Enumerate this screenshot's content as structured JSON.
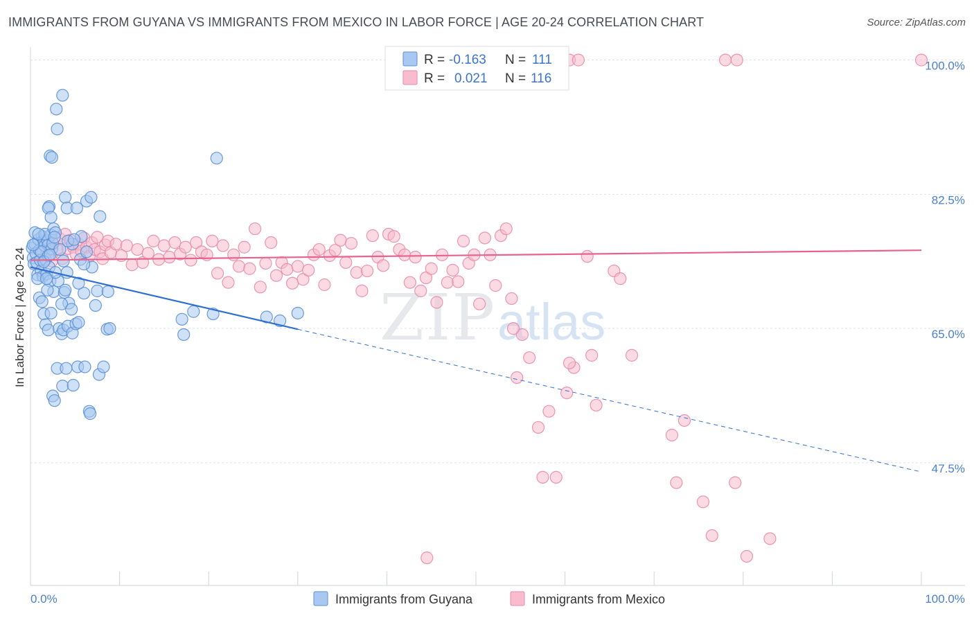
{
  "header": {
    "title": "IMMIGRANTS FROM GUYANA VS IMMIGRANTS FROM MEXICO IN LABOR FORCE | AGE 20-24 CORRELATION CHART",
    "source": "Source: ZipAtlas.com"
  },
  "watermark": {
    "zip": "ZIP",
    "atlas": "atlas"
  },
  "legend_box": {
    "rows": [
      {
        "r_label": "R =",
        "r_value": "-0.163",
        "n_label": "N =",
        "n_value": "111"
      },
      {
        "r_label": "R =",
        "r_value": "0.021",
        "n_label": "N =",
        "n_value": "116"
      }
    ]
  },
  "bottom_legend": {
    "items": [
      "Immigrants from Guyana",
      "Immigrants from Mexico"
    ]
  },
  "chart_data": {
    "type": "scatter",
    "title": "IMMIGRANTS FROM GUYANA VS IMMIGRANTS FROM MEXICO IN LABOR FORCE | AGE 20-24 CORRELATION CHART",
    "xlabel": "",
    "ylabel": "In Labor Force | Age 20-24",
    "xlim": [
      0,
      100
    ],
    "ylim": [
      31.5,
      101.5
    ],
    "x_tick_labels": [
      "0.0%",
      "100.0%"
    ],
    "y_ticks": [
      47.5,
      65.0,
      82.5,
      100.0
    ],
    "y_tick_labels": [
      "47.5%",
      "65.0%",
      "82.5%",
      "100.0%"
    ],
    "grid": true,
    "legend_position": "bottom",
    "colors": {
      "guyana_fill": "#a8c8f0",
      "guyana_stroke": "#5b8fd6",
      "guyana_line": "#2f6fd0",
      "mexico_fill": "#f7bccd",
      "mexico_stroke": "#e98aa8",
      "mexico_line": "#e8628e",
      "tick_text": "#4a7fd0"
    },
    "series": [
      {
        "name": "Immigrants from Guyana",
        "r": -0.163,
        "n": 111,
        "trend": {
          "x": [
            0,
            30
          ],
          "y": [
            73.0,
            64.9
          ],
          "dashed_to": [
            100,
            46.3
          ]
        },
        "points": [
          [
            0.2,
            75.5
          ],
          [
            0.3,
            74.2
          ],
          [
            0.4,
            73.4
          ],
          [
            0.5,
            76.0
          ],
          [
            0.6,
            74.8
          ],
          [
            0.7,
            73.6
          ],
          [
            0.8,
            72.0
          ],
          [
            0.9,
            76.6
          ],
          [
            1.0,
            75.2
          ],
          [
            1.1,
            73.9
          ],
          [
            1.2,
            72.5
          ],
          [
            1.3,
            77.0
          ],
          [
            1.4,
            71.8
          ],
          [
            1.5,
            76.3
          ],
          [
            1.6,
            75.8
          ],
          [
            1.7,
            74.0
          ],
          [
            1.8,
            72.1
          ],
          [
            1.9,
            76.5
          ],
          [
            2.0,
            75.9
          ],
          [
            2.1,
            73.0
          ],
          [
            2.2,
            71.2
          ],
          [
            2.3,
            77.2
          ],
          [
            2.4,
            75.4
          ],
          [
            0.5,
            77.5
          ],
          [
            0.8,
            71.5
          ],
          [
            1.2,
            75.0
          ],
          [
            1.6,
            77.3
          ],
          [
            2.0,
            74.5
          ],
          [
            2.5,
            76.1
          ],
          [
            0.3,
            75.9
          ],
          [
            1.0,
            69.0
          ],
          [
            1.3,
            68.5
          ],
          [
            1.5,
            66.9
          ],
          [
            1.7,
            65.5
          ],
          [
            2.0,
            64.8
          ],
          [
            2.3,
            67.0
          ],
          [
            2.6,
            69.8
          ],
          [
            1.9,
            70.0
          ],
          [
            2.1,
            80.9
          ],
          [
            2.0,
            80.7
          ],
          [
            2.3,
            79.5
          ],
          [
            2.6,
            78.0
          ],
          [
            2.8,
            77.5
          ],
          [
            2.2,
            87.5
          ],
          [
            2.4,
            87.3
          ],
          [
            3.0,
            91.0
          ],
          [
            2.9,
            93.6
          ],
          [
            3.6,
            95.4
          ],
          [
            3.9,
            82.1
          ],
          [
            4.1,
            80.7
          ],
          [
            5.2,
            80.7
          ],
          [
            6.3,
            81.6
          ],
          [
            6.8,
            82.1
          ],
          [
            7.8,
            79.6
          ],
          [
            3.2,
            65.0
          ],
          [
            3.5,
            64.3
          ],
          [
            3.7,
            64.8
          ],
          [
            4.2,
            65.3
          ],
          [
            4.7,
            64.4
          ],
          [
            5.1,
            65.6
          ],
          [
            3.0,
            59.8
          ],
          [
            3.6,
            57.5
          ],
          [
            2.5,
            56.2
          ],
          [
            2.7,
            55.6
          ],
          [
            4.0,
            59.8
          ],
          [
            4.8,
            57.6
          ],
          [
            5.3,
            60.0
          ],
          [
            6.1,
            60.0
          ],
          [
            7.7,
            59.0
          ],
          [
            8.2,
            60.0
          ],
          [
            6.6,
            54.2
          ],
          [
            6.7,
            53.9
          ],
          [
            3.8,
            69.7
          ],
          [
            4.3,
            68.3
          ],
          [
            3.5,
            68.2
          ],
          [
            4.6,
            67.5
          ],
          [
            5.4,
            65.8
          ],
          [
            6.0,
            69.6
          ],
          [
            8.6,
            64.9
          ],
          [
            8.9,
            65.0
          ],
          [
            7.3,
            68.0
          ],
          [
            7.5,
            69.9
          ],
          [
            8.7,
            69.8
          ],
          [
            4.1,
            72.3
          ],
          [
            5.4,
            70.9
          ],
          [
            6.9,
            73.0
          ],
          [
            4.7,
            76.0
          ],
          [
            4.2,
            76.4
          ],
          [
            5.6,
            74.0
          ],
          [
            6.0,
            73.4
          ],
          [
            3.7,
            73.8
          ],
          [
            3.9,
            70.0
          ],
          [
            5.7,
            77.0
          ],
          [
            6.3,
            75.0
          ],
          [
            17.0,
            66.2
          ],
          [
            17.2,
            64.2
          ],
          [
            18.3,
            67.2
          ],
          [
            20.5,
            66.9
          ],
          [
            20.9,
            87.2
          ],
          [
            26.5,
            66.5
          ],
          [
            28.0,
            66.0
          ],
          [
            30.0,
            67.0
          ],
          [
            3.1,
            71.2
          ],
          [
            4.9,
            76.6
          ],
          [
            2.8,
            72.3
          ],
          [
            1.5,
            73.7
          ],
          [
            2.2,
            74.6
          ],
          [
            1.8,
            71.5
          ],
          [
            3.3,
            75.3
          ],
          [
            2.7,
            76.9
          ],
          [
            0.9,
            77.3
          ]
        ]
      },
      {
        "name": "Immigrants from Mexico",
        "r": 0.021,
        "n": 116,
        "trend": {
          "x": [
            0,
            100
          ],
          "y": [
            73.9,
            75.2
          ]
        },
        "points": [
          [
            1.2,
            75.4
          ],
          [
            1.5,
            76.5
          ],
          [
            1.8,
            74.9
          ],
          [
            2.1,
            75.8
          ],
          [
            2.4,
            73.8
          ],
          [
            2.7,
            76.3
          ],
          [
            3.0,
            75.3
          ],
          [
            3.3,
            76.7
          ],
          [
            3.6,
            74.1
          ],
          [
            3.9,
            77.3
          ],
          [
            4.2,
            75.4
          ],
          [
            4.5,
            76.5
          ],
          [
            4.8,
            75.6
          ],
          [
            5.1,
            74.7
          ],
          [
            5.4,
            76.0
          ],
          [
            5.7,
            75.1
          ],
          [
            6.0,
            76.8
          ],
          [
            6.3,
            75.6
          ],
          [
            6.6,
            74.4
          ],
          [
            6.9,
            76.2
          ],
          [
            7.2,
            75.3
          ],
          [
            7.5,
            76.9
          ],
          [
            7.8,
            75.0
          ],
          [
            8.1,
            74.1
          ],
          [
            8.4,
            75.9
          ],
          [
            8.7,
            76.4
          ],
          [
            9.0,
            74.9
          ],
          [
            9.6,
            76.0
          ],
          [
            10.2,
            74.5
          ],
          [
            10.8,
            75.8
          ],
          [
            11.4,
            73.3
          ],
          [
            12.0,
            75.3
          ],
          [
            12.6,
            73.6
          ],
          [
            13.2,
            74.8
          ],
          [
            13.8,
            76.4
          ],
          [
            14.4,
            74.0
          ],
          [
            15.0,
            75.8
          ],
          [
            15.6,
            74.3
          ],
          [
            16.2,
            76.2
          ],
          [
            16.8,
            74.7
          ],
          [
            17.4,
            75.6
          ],
          [
            18.0,
            73.9
          ],
          [
            18.6,
            76.2
          ],
          [
            19.2,
            75.0
          ],
          [
            19.8,
            74.6
          ],
          [
            20.4,
            76.4
          ],
          [
            21.0,
            72.2
          ],
          [
            21.6,
            75.8
          ],
          [
            22.2,
            71.0
          ],
          [
            22.8,
            74.6
          ],
          [
            23.4,
            73.1
          ],
          [
            24.0,
            75.6
          ],
          [
            24.6,
            72.8
          ],
          [
            25.2,
            78.0
          ],
          [
            25.8,
            70.4
          ],
          [
            26.4,
            73.5
          ],
          [
            27.0,
            76.2
          ],
          [
            27.6,
            71.9
          ],
          [
            28.2,
            73.6
          ],
          [
            28.8,
            72.7
          ],
          [
            29.4,
            70.9
          ],
          [
            30.0,
            73.1
          ],
          [
            30.6,
            71.4
          ],
          [
            31.2,
            72.6
          ],
          [
            31.8,
            74.6
          ],
          [
            32.4,
            75.3
          ],
          [
            33.0,
            70.7
          ],
          [
            33.6,
            74.5
          ],
          [
            34.2,
            75.2
          ],
          [
            34.8,
            76.5
          ],
          [
            35.4,
            73.6
          ],
          [
            36.0,
            76.1
          ],
          [
            36.6,
            72.3
          ],
          [
            37.2,
            69.9
          ],
          [
            37.8,
            72.5
          ],
          [
            38.4,
            77.1
          ],
          [
            39.0,
            74.3
          ],
          [
            39.6,
            73.2
          ],
          [
            40.2,
            77.3
          ],
          [
            40.8,
            77.0
          ],
          [
            41.4,
            75.3
          ],
          [
            42.0,
            74.6
          ],
          [
            42.6,
            71.0
          ],
          [
            43.2,
            74.3
          ],
          [
            43.8,
            69.9
          ],
          [
            44.4,
            71.6
          ],
          [
            45.0,
            72.8
          ],
          [
            45.6,
            68.4
          ],
          [
            46.2,
            74.6
          ],
          [
            46.8,
            71.0
          ],
          [
            47.4,
            72.6
          ],
          [
            48.0,
            71.1
          ],
          [
            48.6,
            76.4
          ],
          [
            49.2,
            73.5
          ],
          [
            49.8,
            74.6
          ],
          [
            50.4,
            68.2
          ],
          [
            51.0,
            76.8
          ],
          [
            51.6,
            74.6
          ],
          [
            52.2,
            70.6
          ],
          [
            52.8,
            77.1
          ],
          [
            53.4,
            78.0
          ],
          [
            54.0,
            68.9
          ],
          [
            54.6,
            58.6
          ],
          [
            55.2,
            64.2
          ],
          [
            56.0,
            61.2
          ],
          [
            57.0,
            52.1
          ],
          [
            57.5,
            45.6
          ],
          [
            58.2,
            54.2
          ],
          [
            59.0,
            45.6
          ],
          [
            60.2,
            56.6
          ],
          [
            61.0,
            59.9
          ],
          [
            62.5,
            74.4
          ],
          [
            63.0,
            61.5
          ],
          [
            65.5,
            72.5
          ],
          [
            66.2,
            71.5
          ],
          [
            67.5,
            61.5
          ],
          [
            72.0,
            51.1
          ],
          [
            72.5,
            44.9
          ],
          [
            73.4,
            53.0
          ],
          [
            75.5,
            42.4
          ],
          [
            76.5,
            38.0
          ],
          [
            79.1,
            44.9
          ],
          [
            80.4,
            35.3
          ],
          [
            83.0,
            37.6
          ],
          [
            44.5,
            35.1
          ],
          [
            54.2,
            65.0
          ],
          [
            60.5,
            60.5
          ],
          [
            63.5,
            55.0
          ]
        ]
      }
    ],
    "top_points_mexico": [
      [
        47.8,
        100
      ],
      [
        48.6,
        100
      ],
      [
        50.9,
        100
      ],
      [
        52.6,
        100
      ],
      [
        53.3,
        100
      ],
      [
        56.6,
        100
      ],
      [
        60.5,
        100
      ],
      [
        61.5,
        100
      ],
      [
        78.0,
        100
      ],
      [
        79.3,
        100
      ],
      [
        100.0,
        100
      ]
    ],
    "top_points_guyana": [
      [
        47.6,
        100
      ],
      [
        48.3,
        100
      ],
      [
        49.0,
        100
      ],
      [
        53.0,
        100
      ],
      [
        55.0,
        100
      ]
    ]
  },
  "axis": {
    "ylabel": "In Labor Force | Age 20-24",
    "x_left": "0.0%",
    "x_right": "100.0%"
  }
}
